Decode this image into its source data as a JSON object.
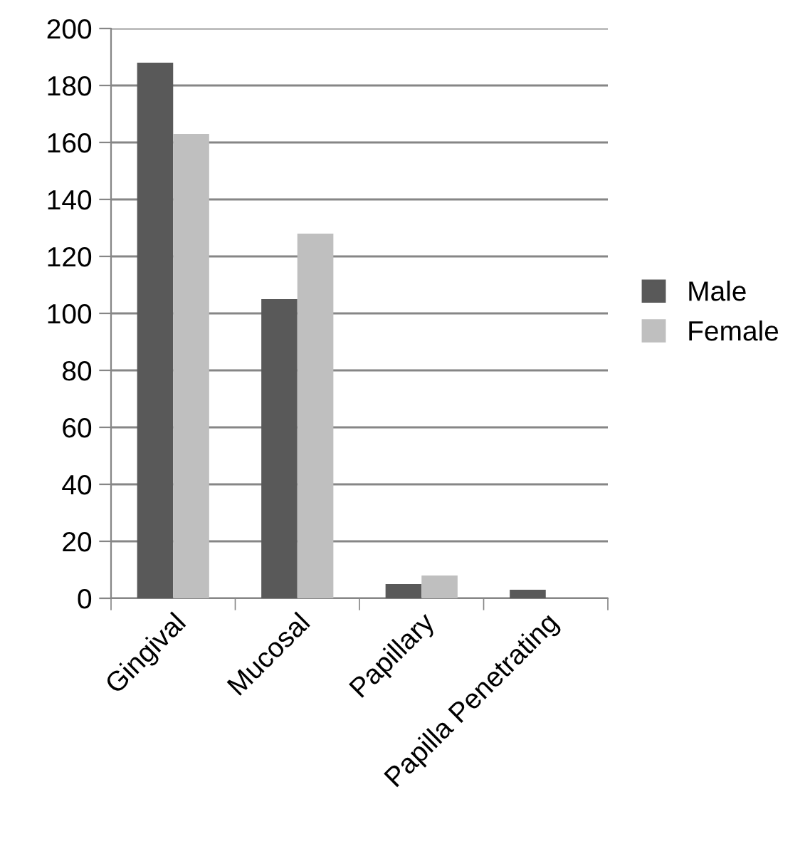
{
  "chart_data": {
    "type": "bar",
    "categories": [
      "Gingival",
      "Mucosal",
      "Papillary",
      "Papilla Penetrating"
    ],
    "series": [
      {
        "name": "Male",
        "color": "#595959",
        "values": [
          188,
          105,
          5,
          3
        ]
      },
      {
        "name": "Female",
        "color": "#bfbfbf",
        "values": [
          163,
          128,
          8,
          0
        ]
      }
    ],
    "ylim": [
      0,
      200
    ],
    "yticks": [
      0,
      20,
      40,
      60,
      80,
      100,
      120,
      140,
      160,
      180,
      200
    ],
    "grid": "y",
    "legend": "right"
  }
}
